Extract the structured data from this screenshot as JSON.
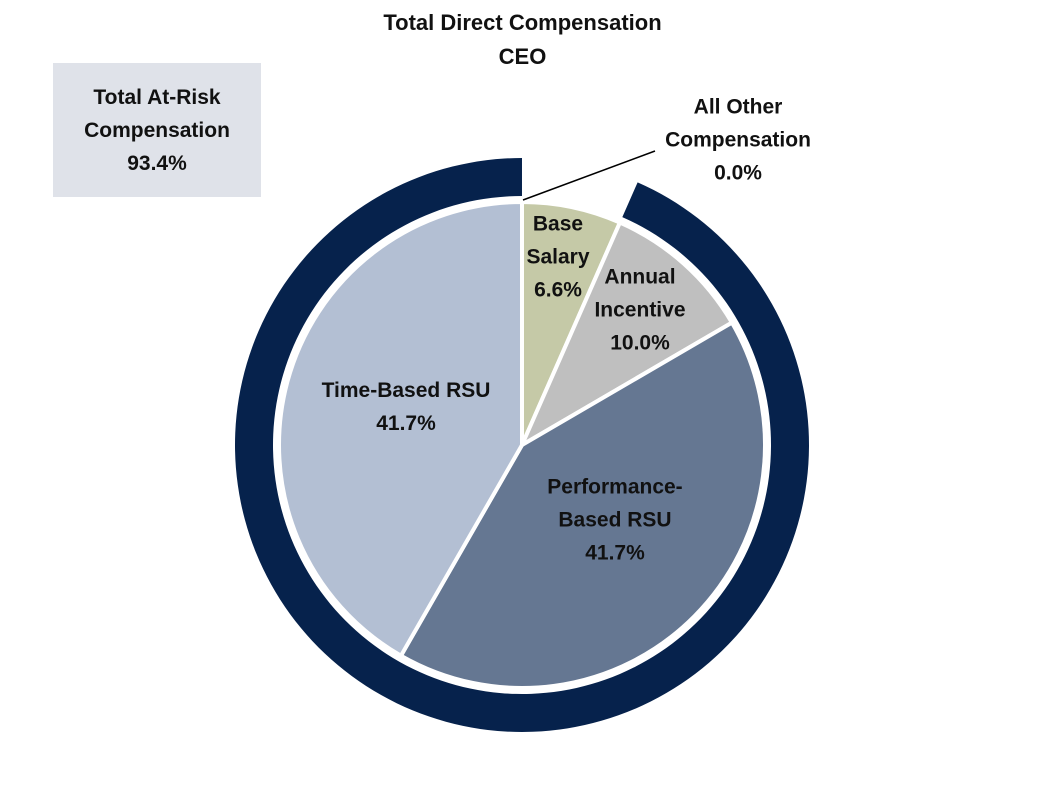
{
  "chart_data": {
    "type": "pie",
    "title": "Total Direct Compensation",
    "subtitle": "CEO",
    "categories": [
      "All Other Compensation",
      "Base Salary",
      "Annual Incentive",
      "Performance-Based RSU",
      "Time-Based RSU"
    ],
    "values": [
      0.0,
      6.6,
      10.0,
      41.7,
      41.7
    ],
    "value_labels": [
      "0.0%",
      "6.6%",
      "10.0%",
      "41.7%",
      "41.7%"
    ],
    "colors": [
      "#ffffff",
      "#c5c9a7",
      "#bfbfbf",
      "#657792",
      "#b3bfd3"
    ],
    "at_risk": {
      "label": "Total At-Risk Compensation",
      "value": 93.4,
      "value_label": "93.4%",
      "color": "#06224c",
      "box_color": "#dfe2e9"
    }
  }
}
